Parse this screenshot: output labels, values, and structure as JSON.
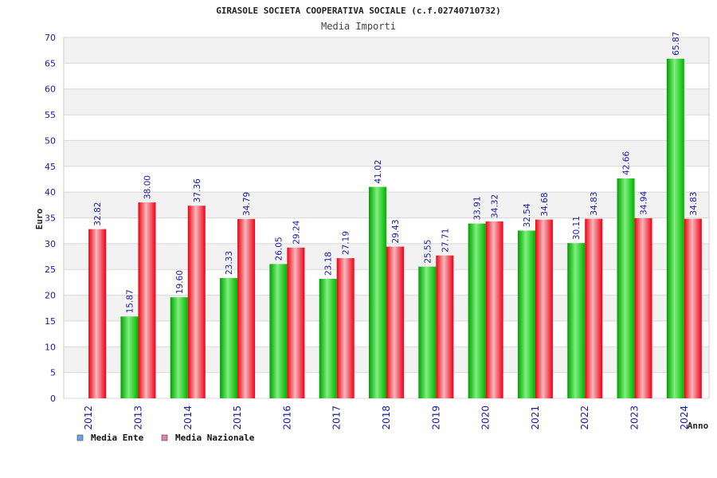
{
  "chart_data": {
    "type": "bar",
    "title": "GIRASOLE SOCIETA COOPERATIVA SOCIALE (c.f.02740710732)",
    "subtitle": "Media Importi",
    "xlabel": "Anno",
    "ylabel": "Euro",
    "ylim": [
      0,
      70
    ],
    "yticks": [
      0,
      5,
      10,
      15,
      20,
      25,
      30,
      35,
      40,
      45,
      50,
      55,
      60,
      65,
      70
    ],
    "grid": true,
    "legend_position": "bottom-left",
    "categories": [
      "2012",
      "2013",
      "2014",
      "2015",
      "2016",
      "2017",
      "2018",
      "2019",
      "2020",
      "2021",
      "2022",
      "2023",
      "2024"
    ],
    "series": [
      {
        "name": "Media Ente",
        "color": "#00c000",
        "legend_color": "#6fa0e6",
        "values": [
          null,
          15.87,
          19.6,
          23.33,
          26.05,
          23.18,
          41.02,
          25.55,
          33.91,
          32.54,
          30.11,
          42.66,
          65.87
        ],
        "labels": [
          "",
          "15.87",
          "19.60",
          "23.33",
          "26.05",
          "23.18",
          "41.02",
          "25.55",
          "33.91",
          "32.54",
          "30.11",
          "42.66",
          "65.87"
        ]
      },
      {
        "name": "Media Nazionale",
        "color": "#ff1020",
        "legend_color": "#e080b0",
        "values": [
          32.82,
          38.0,
          37.36,
          34.79,
          29.24,
          27.19,
          29.43,
          27.71,
          34.32,
          34.68,
          34.83,
          34.94,
          34.83
        ],
        "labels": [
          "32.82",
          "38.00",
          "37.36",
          "34.79",
          "29.24",
          "27.19",
          "29.43",
          "27.71",
          "34.32",
          "34.68",
          "34.83",
          "34.94",
          "34.83"
        ]
      }
    ]
  }
}
